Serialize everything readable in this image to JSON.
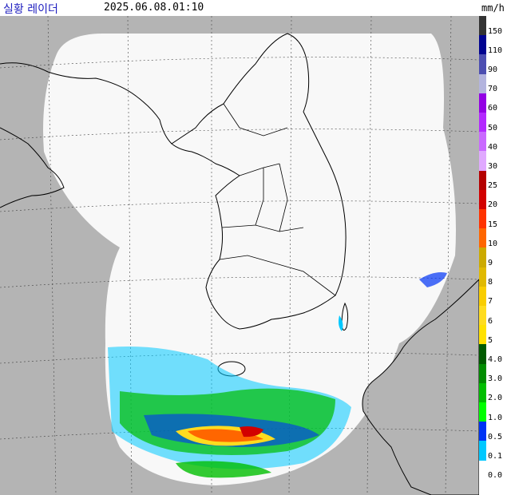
{
  "header": {
    "title": "실황 레이더",
    "timestamp": "2025.06.08.01:10",
    "unit": "mm/h"
  },
  "legend": {
    "levels": [
      {
        "label": "150",
        "color": "#333333"
      },
      {
        "label": "110",
        "color": "#000390"
      },
      {
        "label": "90",
        "color": "#4c4eb1"
      },
      {
        "label": "70",
        "color": "#b3b4de"
      },
      {
        "label": "60",
        "color": "#9300e4"
      },
      {
        "label": "50",
        "color": "#b329ff"
      },
      {
        "label": "40",
        "color": "#c969ff"
      },
      {
        "label": "30",
        "color": "#e0a9ff"
      },
      {
        "label": "25",
        "color": "#b40000"
      },
      {
        "label": "20",
        "color": "#d20000"
      },
      {
        "label": "15",
        "color": "#ff3300"
      },
      {
        "label": "10",
        "color": "#ff6600"
      },
      {
        "label": "9",
        "color": "#ccaa00"
      },
      {
        "label": "8",
        "color": "#e0b900"
      },
      {
        "label": "7",
        "color": "#f9cd00"
      },
      {
        "label": "6",
        "color": "#ffdc1f"
      },
      {
        "label": "5",
        "color": "#ffe100"
      },
      {
        "label": "4.0",
        "color": "#005a00"
      },
      {
        "label": "3.0",
        "color": "#008c00"
      },
      {
        "label": "2.0",
        "color": "#00be00"
      },
      {
        "label": "1.0",
        "color": "#00ff00"
      },
      {
        "label": "0.5",
        "color": "#0033f5"
      },
      {
        "label": "0.1",
        "color": "#00c8ff"
      },
      {
        "label": "0.0",
        "color": "#ffffff"
      }
    ]
  },
  "colors": {
    "background": "#b4b4b4",
    "coverage": "#f8f8f8",
    "coastline": "#000000",
    "grid": "#444444"
  }
}
